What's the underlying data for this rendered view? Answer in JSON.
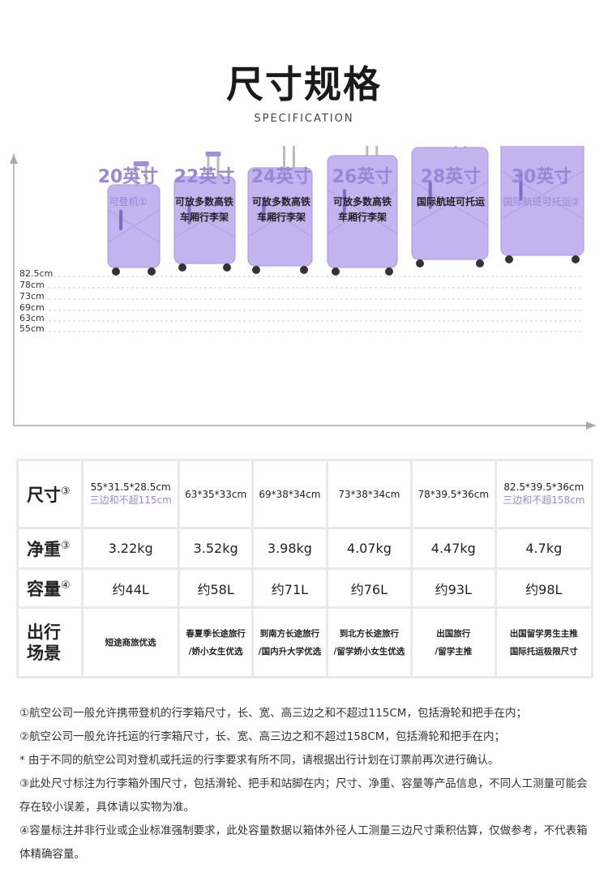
{
  "header": {
    "title": "尺寸规格",
    "subtitle": "SPECIFICATION"
  },
  "sizes": [
    {
      "label": "20英寸",
      "desc": [
        "可登机①"
      ],
      "highlight": true
    },
    {
      "label": "22英寸",
      "desc": [
        "可放多数高铁",
        "车厢行李架"
      ]
    },
    {
      "label": "24英寸",
      "desc": [
        "可放多数高铁",
        "车厢行李架"
      ]
    },
    {
      "label": "26英寸",
      "desc": [
        "可放多数高铁",
        "车厢行李架"
      ]
    },
    {
      "label": "28英寸",
      "desc": [
        "国际航班可托运"
      ]
    },
    {
      "label": "30英寸",
      "desc": [
        "国际航班可托运②"
      ],
      "highlight": true
    }
  ],
  "height_labels": [
    "82.5cm",
    "78cm",
    "73cm",
    "69cm",
    "63cm",
    "55cm"
  ],
  "colors": {
    "accent": "#9a86d6",
    "suitcase": "#c3b3ee"
  },
  "table": {
    "row_headers": [
      {
        "label": "尺寸",
        "mark": "③"
      },
      {
        "label": "净重",
        "mark": "③"
      },
      {
        "label": "容量",
        "mark": "④"
      },
      {
        "label": "出行场景",
        "mark": ""
      }
    ],
    "dimensions": [
      [
        "55*31.5*28.5cm",
        "三边和不超115cm"
      ],
      [
        "63*35*33cm",
        ""
      ],
      [
        "69*38*34cm",
        ""
      ],
      [
        "73*38*34cm",
        ""
      ],
      [
        "78*39.5*36cm",
        ""
      ],
      [
        "82.5*39.5*36cm",
        "三边和不超158cm"
      ]
    ],
    "weights": [
      "3.22kg",
      "3.52kg",
      "3.98kg",
      "4.07kg",
      "4.47kg",
      "4.7kg"
    ],
    "capacities": [
      "约44L",
      "约58L",
      "约71L",
      "约76L",
      "约93L",
      "约98L"
    ],
    "scenes": [
      [
        "短途商旅优选",
        ""
      ],
      [
        "春夏季长途旅行",
        "/娇小女生优选"
      ],
      [
        "到南方长途旅行",
        "/国内升大学优选"
      ],
      [
        "到北方长途旅行",
        "/留学娇小女生优选"
      ],
      [
        "出国旅行",
        "/留学主推"
      ],
      [
        "出国留学男生主推",
        "国际托运极限尺寸"
      ]
    ]
  },
  "notes": [
    "①航空公司一般允许携带登机的行李箱尺寸，长、宽、高三边之和不超过115CM，包括滑轮和把手在内；",
    "②航空公司一般允许托运的行李箱尺寸，长、宽、高三边之和不超过158CM，包括滑轮和把手在内；",
    "* 由于不同的航空公司对登机或托运的行李要求有所不同，请根据出行计划在订票前再次进行确认。",
    "③此处尺寸标注为行李箱外围尺寸，包括滑轮、把手和站脚在内；尺寸、净重、容量等产品信息，不同人工测量可能会存在较小误差，具体请以实物为准。",
    "④容量标注并非行业或企业标准强制要求，此处容量数据以箱体外径人工测量三边尺寸乘积估算，仅做参考，不代表箱体精确容量。"
  ]
}
